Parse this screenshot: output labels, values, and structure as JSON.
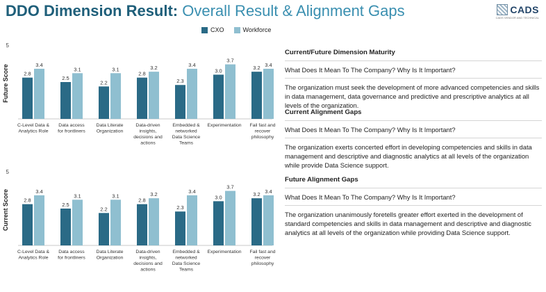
{
  "header": {
    "title_bold": "DDO Dimension Result:",
    "title_rest": " Overall Result & Alignment Gaps",
    "logo_text": "CADS",
    "logo_tagline": "CADS VENDOR AND TECHNICAL"
  },
  "legend": {
    "items": [
      {
        "label": "CXO",
        "color": "#2a6a86"
      },
      {
        "label": "Workforce",
        "color": "#8fbfd0"
      }
    ]
  },
  "chart_data": [
    {
      "type": "bar",
      "title": "",
      "ylabel": "Future Score",
      "ymax_label": "5",
      "ylim": [
        0,
        5
      ],
      "categories": [
        [
          "C-Level Data &",
          "Analytics Role"
        ],
        [
          "Data access",
          "for frontliners"
        ],
        [
          "Data Literate",
          "Organization"
        ],
        [
          "Data-driven",
          "insights,",
          "decisions and",
          "actions"
        ],
        [
          "Embedded &",
          "networked",
          "Data Science",
          "Teams"
        ],
        [
          "Experimentation"
        ],
        [
          "Fail fast and",
          "recover",
          "philosophy"
        ]
      ],
      "series": [
        {
          "name": "CXO",
          "values": [
            2.8,
            2.5,
            2.2,
            2.8,
            2.3,
            3.0,
            3.2
          ],
          "labels": [
            "2.8",
            "2.5",
            "2.2",
            "2.8",
            "2.3",
            "3.0",
            "3.2"
          ]
        },
        {
          "name": "Workforce",
          "values": [
            3.4,
            3.1,
            3.1,
            3.2,
            3.4,
            3.7,
            3.4
          ],
          "labels": [
            "3.4",
            "3.1",
            "3.1",
            "3.2",
            "3.4",
            "3.7",
            "3.4"
          ]
        }
      ]
    },
    {
      "type": "bar",
      "title": "",
      "ylabel": "Current Score",
      "ymax_label": "5",
      "ylim": [
        0,
        5
      ],
      "categories": [
        [
          "C-Level Data &",
          "Analytics Role"
        ],
        [
          "Data access",
          "for frontliners"
        ],
        [
          "Data Literate",
          "Organization"
        ],
        [
          "Data-driven",
          "insights,",
          "decisions and",
          "actions"
        ],
        [
          "Embedded &",
          "networked",
          "Data Science",
          "Teams"
        ],
        [
          "Experimentation"
        ],
        [
          "Fail fast and",
          "recover",
          "philosophy"
        ]
      ],
      "series": [
        {
          "name": "CXO",
          "values": [
            2.8,
            2.5,
            2.2,
            2.8,
            2.3,
            3.0,
            3.2
          ],
          "labels": [
            "2.8",
            "2.5",
            "2.2",
            "2.8",
            "2.3",
            "3.0",
            "3.2"
          ]
        },
        {
          "name": "Workforce",
          "values": [
            3.4,
            3.1,
            3.1,
            3.2,
            3.4,
            3.7,
            3.4
          ],
          "labels": [
            "3.4",
            "3.1",
            "3.1",
            "3.2",
            "3.4",
            "3.7",
            "3.4"
          ]
        }
      ]
    }
  ],
  "panel": {
    "sections": [
      {
        "heading": "Current/Future Dimension Maturity",
        "question": "What Does It Mean To The Company? Why Is It Important?",
        "paragraph": "The organization must seek the development of more advanced competencies and skills in data management, data governance and predictive and prescriptive analytics at all levels of the organization."
      },
      {
        "heading": "Current Alignment Gaps",
        "question": "What Does It Mean To The Company? Why Is It Important?",
        "paragraph": "The organization exerts concerted effort in developing competencies and skills in data management and descriptive and diagnostic analytics at all levels of the organization while provide Data Science support."
      },
      {
        "heading": "Future Alignment Gaps",
        "question": "What Does It Mean To The Company? Why Is It Important?",
        "paragraph": "The organization unanimously foretells greater effort exerted in the development of standard competencies and skills in data management and descriptive and diagnostic analytics at all levels of the organization while providing Data Science support."
      }
    ]
  }
}
